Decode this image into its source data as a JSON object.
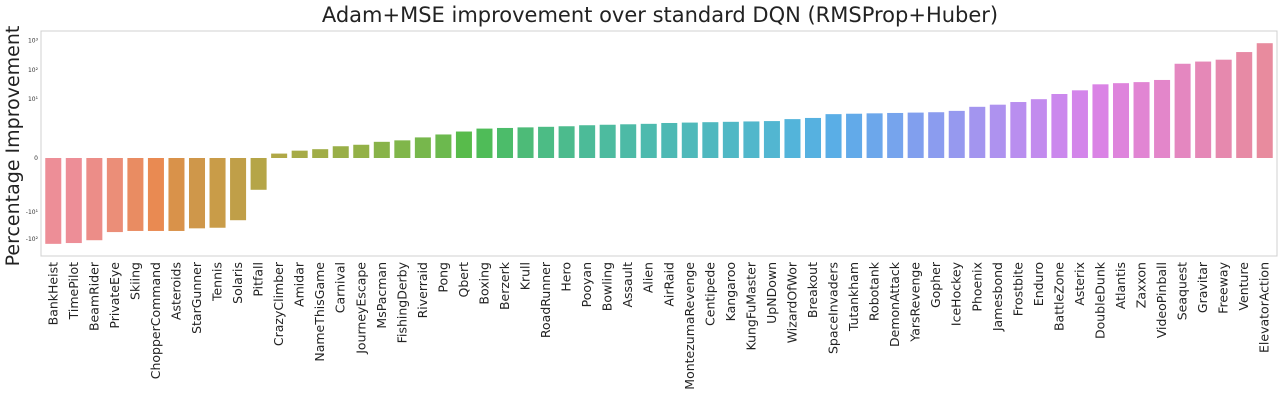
{
  "chart_data": {
    "type": "bar",
    "title": "Adam+MSE improvement over standard DQN (RMSProp+Huber)",
    "xlabel": "",
    "ylabel": "Percentage Improvement",
    "yscale": "symlog",
    "ylim": [
      -300,
      1300
    ],
    "yticks": [
      {
        "label": "-10²",
        "value": -100
      },
      {
        "label": "-10¹",
        "value": -10
      },
      {
        "label": "0",
        "value": 0
      },
      {
        "label": "10¹",
        "value": 10
      },
      {
        "label": "10²",
        "value": 100
      },
      {
        "label": "10³",
        "value": 1000
      }
    ],
    "grid": false,
    "legend": "none",
    "categories": [
      "BankHeist",
      "TimePilot",
      "BeamRider",
      "PrivateEye",
      "Skiing",
      "ChopperCommand",
      "Asteroids",
      "StarGunner",
      "Tennis",
      "Solaris",
      "Pitfall",
      "CrazyClimber",
      "Amidar",
      "NameThisGame",
      "Carnival",
      "JourneyEscape",
      "MsPacman",
      "FishingDerby",
      "Riverraid",
      "Pong",
      "Qbert",
      "Boxing",
      "Berzerk",
      "Krull",
      "RoadRunner",
      "Hero",
      "Pooyan",
      "Bowling",
      "Assault",
      "Alien",
      "AirRaid",
      "MontezumaRevenge",
      "Centipede",
      "Kangaroo",
      "KungFuMaster",
      "UpNDown",
      "WizardOfWor",
      "Breakout",
      "SpaceInvaders",
      "Tutankham",
      "Robotank",
      "DemonAttack",
      "YarsRevenge",
      "Gopher",
      "IceHockey",
      "Phoenix",
      "Jamesbond",
      "Frostbite",
      "Enduro",
      "BattleZone",
      "Asterix",
      "DoubleDunk",
      "Atlantis",
      "Zaxxon",
      "VideoPinball",
      "Seaquest",
      "Gravitar",
      "Freeway",
      "Venture",
      "ElevatorAction"
    ],
    "values": [
      -150,
      -140,
      -110,
      -55,
      -50,
      -50,
      -50,
      -40,
      -38,
      -20,
      -1.5,
      0.15,
      0.25,
      0.3,
      0.4,
      0.45,
      0.55,
      0.6,
      0.7,
      0.8,
      0.9,
      1.0,
      1.05,
      1.1,
      1.15,
      1.2,
      1.3,
      1.35,
      1.4,
      1.45,
      1.55,
      1.6,
      1.65,
      1.7,
      1.75,
      1.8,
      2.1,
      2.3,
      3.1,
      3.2,
      3.3,
      3.4,
      3.5,
      3.6,
      4.0,
      5.5,
      6.5,
      8.0,
      10,
      15,
      20,
      32,
      35,
      38,
      45,
      160,
      190,
      220,
      400,
      800
    ],
    "colors": [
      "#ed8e97",
      "#ed8e97",
      "#ec8d88",
      "#eb8e78",
      "#e98c62",
      "#e98a52",
      "#d9924a",
      "#cf974a",
      "#c99c48",
      "#c09f48",
      "#b5a547",
      "#b0a847",
      "#a6ab47",
      "#a0ad47",
      "#99af48",
      "#93b147",
      "#88b349",
      "#80b64a",
      "#77b74c",
      "#6cb94e",
      "#58bb4b",
      "#4fbc58",
      "#4cbc6a",
      "#4dbb78",
      "#4cbc85",
      "#4cbb8d",
      "#4cbb98",
      "#4dbb9f",
      "#4dbaa6",
      "#4dbaae",
      "#4eb9b4",
      "#4fb9ba",
      "#4fb8bf",
      "#50b8c5",
      "#51b7cb",
      "#52b6d1",
      "#53b4da",
      "#56b1e0",
      "#5aaee6",
      "#62aae9",
      "#6ca7eb",
      "#76a4ed",
      "#819fee",
      "#8b9cef",
      "#9699ef",
      "#a395ef",
      "#ae92ef",
      "#b98eef",
      "#c28bee",
      "#cb88ed",
      "#d385ea",
      "#da83e5",
      "#de84dc",
      "#e185d3",
      "#e386ca",
      "#e487c0",
      "#e588b7",
      "#e689ae",
      "#e78aa5",
      "#e88b9e"
    ]
  }
}
